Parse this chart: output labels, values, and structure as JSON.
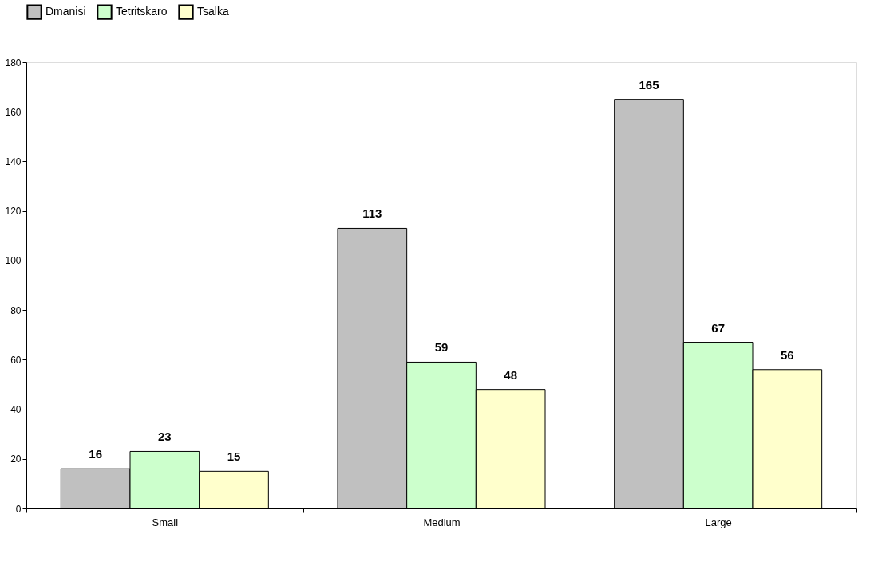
{
  "chart_data": {
    "type": "bar",
    "categories": [
      "Small",
      "Medium",
      "Large"
    ],
    "series": [
      {
        "name": "Dmanisi",
        "color": "#c0c0c0",
        "values": [
          16,
          113,
          165
        ]
      },
      {
        "name": "Tetritskaro",
        "color": "#ccffcc",
        "values": [
          23,
          59,
          67
        ]
      },
      {
        "name": "Tsalka",
        "color": "#ffffcc",
        "values": [
          15,
          48,
          56
        ]
      }
    ],
    "ylim": [
      0,
      180
    ],
    "yticks": [
      0,
      20,
      40,
      60,
      80,
      100,
      120,
      140,
      160,
      180
    ],
    "data_labels": true,
    "legend": "top",
    "grid": false
  }
}
